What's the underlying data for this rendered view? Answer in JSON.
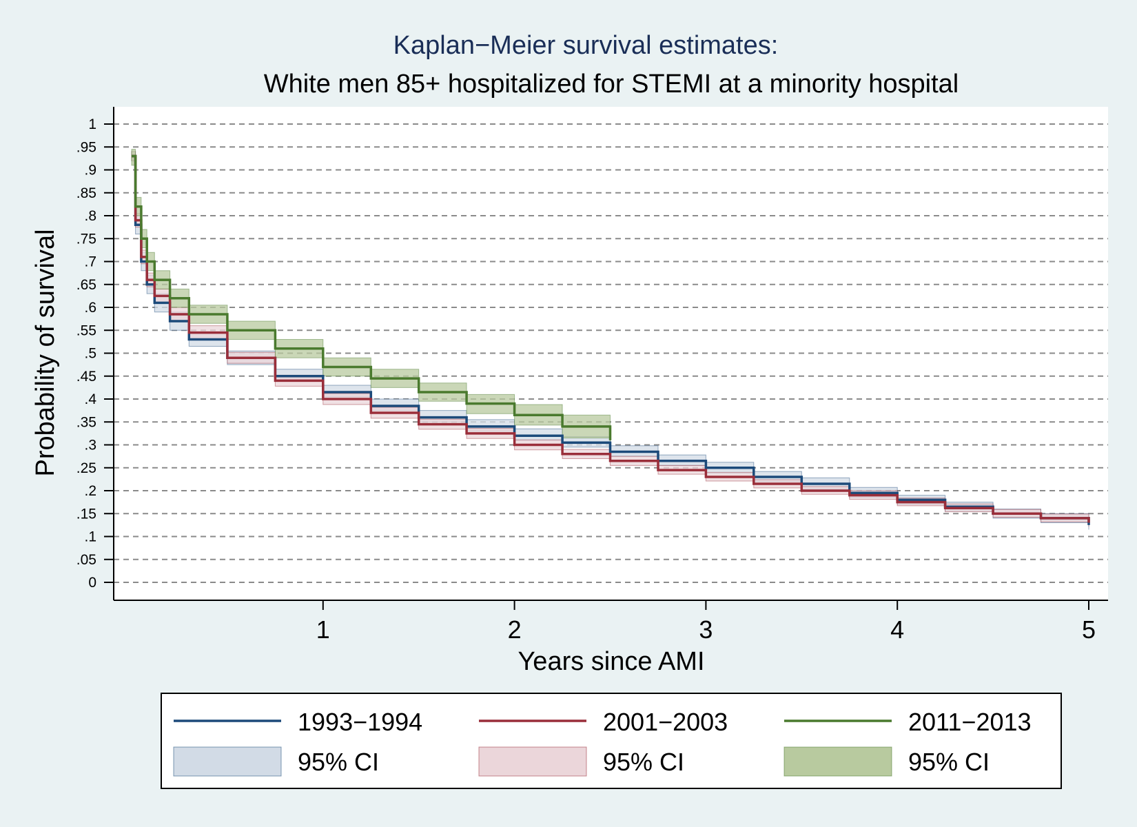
{
  "chart_data": {
    "type": "line",
    "title": "Kaplan−Meier survival estimates:",
    "subtitle": "White men 85+ hospitalized for STEMI at a minority hospital",
    "xlabel": "Years since AMI",
    "ylabel": "Probability of survival",
    "xlim": [
      0,
      5
    ],
    "ylim": [
      0,
      1
    ],
    "x_ticks": [
      1,
      2,
      3,
      4,
      5
    ],
    "y_ticks": [
      0,
      0.05,
      0.1,
      0.15,
      0.2,
      0.25,
      0.3,
      0.35,
      0.4,
      0.45,
      0.5,
      0.55,
      0.6,
      0.65,
      0.7,
      0.75,
      0.8,
      0.85,
      0.9,
      0.95,
      1
    ],
    "y_tick_labels": [
      "0",
      ".05",
      ".1",
      ".15",
      ".2",
      ".25",
      ".3",
      ".35",
      ".4",
      ".45",
      ".5",
      ".55",
      ".6",
      ".65",
      ".7",
      ".75",
      ".8",
      ".85",
      ".9",
      ".95",
      "1"
    ],
    "grid": "horizontal dashed",
    "legend_position": "bottom",
    "series": [
      {
        "name": "1993−1994",
        "ci_label": "95% CI",
        "color": "#1c4a7a",
        "ci_color": "#d2dbe6",
        "x": [
          0,
          0.02,
          0.05,
          0.08,
          0.12,
          0.2,
          0.3,
          0.5,
          0.75,
          1.0,
          1.25,
          1.5,
          1.75,
          2.0,
          2.25,
          2.5,
          2.75,
          3.0,
          3.25,
          3.5,
          3.75,
          4.0,
          4.25,
          4.5,
          4.75,
          5.0
        ],
        "y": [
          0.93,
          0.78,
          0.7,
          0.65,
          0.61,
          0.57,
          0.53,
          0.49,
          0.45,
          0.415,
          0.385,
          0.36,
          0.34,
          0.32,
          0.305,
          0.285,
          0.265,
          0.25,
          0.23,
          0.215,
          0.195,
          0.18,
          0.165,
          0.15,
          0.14,
          0.125
        ],
        "lower": [
          0.92,
          0.76,
          0.68,
          0.63,
          0.59,
          0.55,
          0.515,
          0.475,
          0.44,
          0.405,
          0.375,
          0.35,
          0.33,
          0.31,
          0.295,
          0.275,
          0.255,
          0.238,
          0.22,
          0.203,
          0.185,
          0.17,
          0.155,
          0.14,
          0.13,
          0.115
        ],
        "upper": [
          0.94,
          0.8,
          0.72,
          0.67,
          0.63,
          0.59,
          0.545,
          0.505,
          0.465,
          0.43,
          0.4,
          0.375,
          0.355,
          0.335,
          0.318,
          0.298,
          0.278,
          0.262,
          0.242,
          0.228,
          0.207,
          0.19,
          0.175,
          0.16,
          0.15,
          0.135
        ]
      },
      {
        "name": "2001−2003",
        "ci_label": "95% CI",
        "color": "#9a2e3a",
        "ci_color": "#ebd6da",
        "x": [
          0,
          0.02,
          0.05,
          0.08,
          0.12,
          0.2,
          0.3,
          0.5,
          0.75,
          1.0,
          1.25,
          1.5,
          1.75,
          2.0,
          2.25,
          2.5,
          2.75,
          3.0,
          3.25,
          3.5,
          3.75,
          4.0,
          4.25,
          4.5,
          4.75,
          5.0
        ],
        "y": [
          0.93,
          0.79,
          0.71,
          0.66,
          0.625,
          0.585,
          0.545,
          0.49,
          0.44,
          0.4,
          0.37,
          0.345,
          0.325,
          0.3,
          0.28,
          0.265,
          0.245,
          0.23,
          0.215,
          0.2,
          0.19,
          0.175,
          0.162,
          0.15,
          0.14,
          0.13
        ],
        "lower": [
          0.92,
          0.775,
          0.695,
          0.645,
          0.61,
          0.57,
          0.53,
          0.478,
          0.428,
          0.388,
          0.358,
          0.334,
          0.314,
          0.289,
          0.27,
          0.255,
          0.236,
          0.221,
          0.206,
          0.192,
          0.181,
          0.167,
          0.154,
          0.142,
          0.132,
          0.121
        ],
        "upper": [
          0.94,
          0.805,
          0.725,
          0.675,
          0.64,
          0.6,
          0.56,
          0.502,
          0.452,
          0.412,
          0.382,
          0.356,
          0.336,
          0.311,
          0.29,
          0.275,
          0.255,
          0.24,
          0.224,
          0.209,
          0.2,
          0.184,
          0.171,
          0.159,
          0.149,
          0.14
        ]
      },
      {
        "name": "2011−2013",
        "ci_label": "95% CI",
        "color": "#4a7a2e",
        "ci_color": "#b8ca9f",
        "x": [
          0,
          0.02,
          0.05,
          0.08,
          0.12,
          0.2,
          0.3,
          0.5,
          0.75,
          1.0,
          1.25,
          1.5,
          1.75,
          2.0,
          2.25,
          2.5
        ],
        "y": [
          0.93,
          0.82,
          0.75,
          0.7,
          0.66,
          0.62,
          0.585,
          0.55,
          0.51,
          0.47,
          0.445,
          0.415,
          0.39,
          0.365,
          0.34,
          0.31
        ],
        "lower": [
          0.91,
          0.8,
          0.73,
          0.68,
          0.64,
          0.6,
          0.565,
          0.53,
          0.49,
          0.45,
          0.425,
          0.395,
          0.368,
          0.343,
          0.315,
          0.28
        ],
        "upper": [
          0.945,
          0.84,
          0.77,
          0.72,
          0.68,
          0.64,
          0.605,
          0.57,
          0.53,
          0.49,
          0.465,
          0.435,
          0.41,
          0.388,
          0.365,
          0.345
        ]
      }
    ]
  }
}
